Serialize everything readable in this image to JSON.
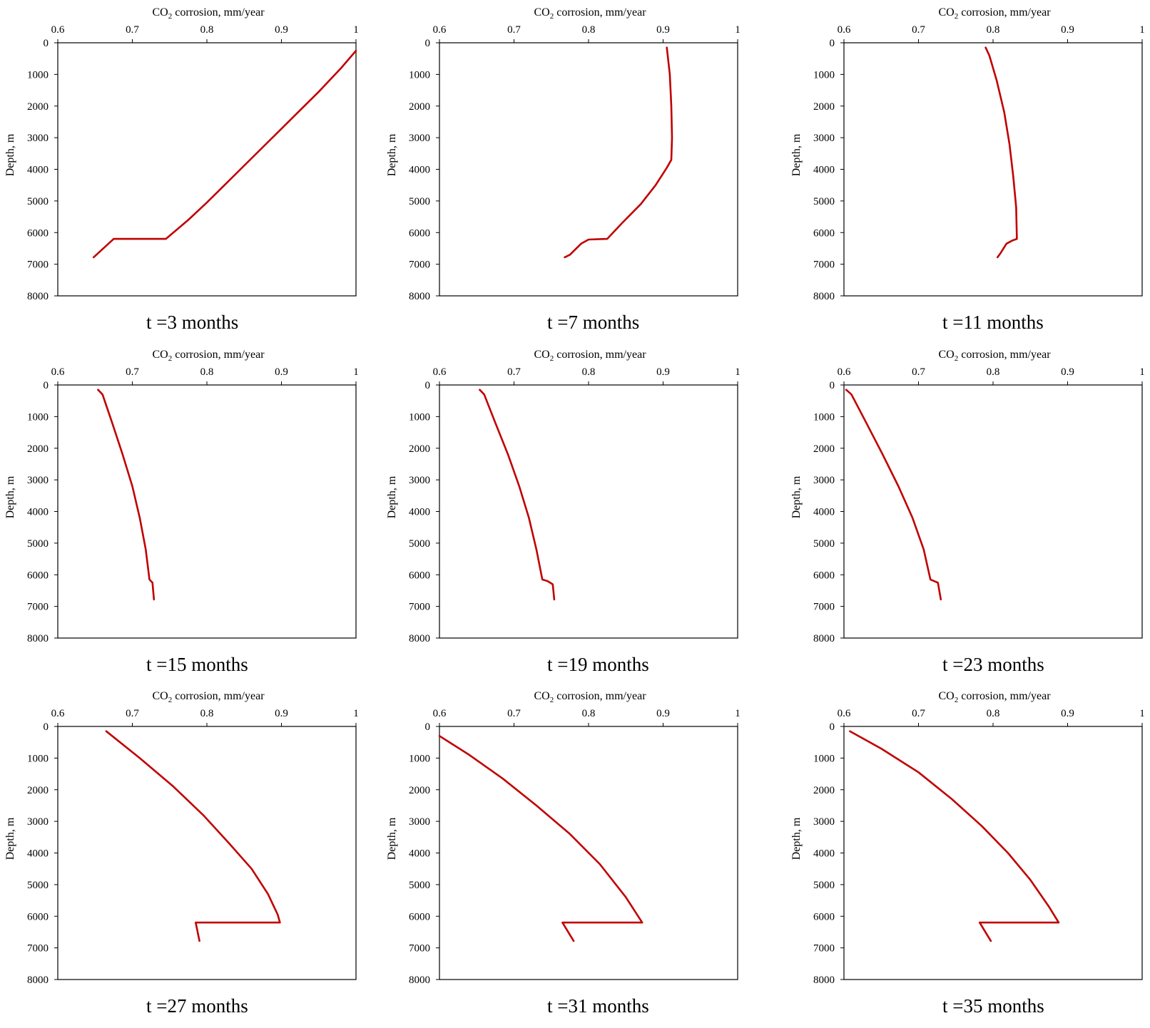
{
  "figure": {
    "axis_title_prefix": "CO",
    "axis_title_subscript": "2",
    "axis_title_suffix": " corrosion,  mm/year",
    "y_axis_title": "Depth, m",
    "line_color": "#c00000",
    "x_tick_labels": [
      "0.6",
      "0.7",
      "0.8",
      "0.9",
      "1"
    ],
    "y_tick_labels": [
      "0",
      "1000",
      "2000",
      "3000",
      "4000",
      "5000",
      "6000",
      "7000",
      "8000"
    ]
  },
  "chart_data": [
    {
      "type": "line",
      "caption": "t =3 months",
      "xlabel": "CO2 corrosion,  mm/year",
      "ylabel": "Depth, m",
      "xlim": [
        0.6,
        1
      ],
      "ylim": [
        0,
        8000
      ],
      "x_axis_position": "top",
      "y_axis_inverted": true,
      "series": [
        {
          "x": [
            1.0,
            0.98,
            0.95,
            0.92,
            0.89,
            0.86,
            0.83,
            0.8,
            0.775,
            0.745,
            0.71,
            0.675,
            0.648
          ],
          "y": [
            250,
            800,
            1550,
            2250,
            2950,
            3650,
            4350,
            5050,
            5600,
            6200,
            6200,
            6200,
            6780
          ]
        }
      ]
    },
    {
      "type": "line",
      "caption": "t =7 months",
      "xlabel": "CO2 corrosion,  mm/year",
      "ylabel": "Depth, m",
      "xlim": [
        0.6,
        1
      ],
      "ylim": [
        0,
        8000
      ],
      "x_axis_position": "top",
      "y_axis_inverted": true,
      "series": [
        {
          "x": [
            0.905,
            0.909,
            0.911,
            0.912,
            0.911,
            0.905,
            0.89,
            0.87,
            0.845,
            0.825,
            0.8,
            0.79,
            0.775,
            0.768
          ],
          "y": [
            150,
            1000,
            2000,
            3000,
            3700,
            3950,
            4500,
            5100,
            5700,
            6200,
            6220,
            6350,
            6700,
            6780
          ]
        }
      ]
    },
    {
      "type": "line",
      "caption": "t =11 months",
      "xlabel": "CO2 corrosion,  mm/year",
      "ylabel": "Depth, m",
      "xlim": [
        0.6,
        1
      ],
      "ylim": [
        0,
        8000
      ],
      "x_axis_position": "top",
      "y_axis_inverted": true,
      "series": [
        {
          "x": [
            0.79,
            0.795,
            0.805,
            0.815,
            0.822,
            0.827,
            0.831,
            0.832,
            0.826,
            0.818,
            0.81,
            0.806
          ],
          "y": [
            150,
            400,
            1200,
            2200,
            3200,
            4200,
            5200,
            6200,
            6250,
            6350,
            6650,
            6780
          ]
        }
      ]
    },
    {
      "type": "line",
      "caption": "t =15 months",
      "xlabel": "CO2 corrosion,  mm/year",
      "ylabel": "Depth, m",
      "xlim": [
        0.6,
        1
      ],
      "ylim": [
        0,
        8000
      ],
      "x_axis_position": "top",
      "y_axis_inverted": true,
      "series": [
        {
          "x": [
            0.654,
            0.66,
            0.673,
            0.687,
            0.7,
            0.71,
            0.718,
            0.723,
            0.727,
            0.729
          ],
          "y": [
            150,
            300,
            1200,
            2200,
            3200,
            4200,
            5200,
            6150,
            6250,
            6780
          ]
        }
      ]
    },
    {
      "type": "line",
      "caption": "t =19 months",
      "xlabel": "CO2 corrosion,  mm/year",
      "ylabel": "Depth, m",
      "xlim": [
        0.6,
        1
      ],
      "ylim": [
        0,
        8000
      ],
      "x_axis_position": "top",
      "y_axis_inverted": true,
      "series": [
        {
          "x": [
            0.654,
            0.66,
            0.675,
            0.692,
            0.707,
            0.72,
            0.73,
            0.738,
            0.745,
            0.752,
            0.754
          ],
          "y": [
            150,
            300,
            1200,
            2200,
            3200,
            4200,
            5200,
            6150,
            6200,
            6300,
            6780
          ]
        }
      ]
    },
    {
      "type": "line",
      "caption": "t =23 months",
      "xlabel": "CO2 corrosion,  mm/year",
      "ylabel": "Depth, m",
      "xlim": [
        0.6,
        1
      ],
      "ylim": [
        0,
        8000
      ],
      "x_axis_position": "top",
      "y_axis_inverted": true,
      "series": [
        {
          "x": [
            0.603,
            0.61,
            0.63,
            0.652,
            0.673,
            0.692,
            0.707,
            0.716,
            0.726,
            0.73
          ],
          "y": [
            150,
            300,
            1200,
            2200,
            3200,
            4200,
            5200,
            6150,
            6250,
            6780
          ]
        }
      ]
    },
    {
      "type": "line",
      "caption": "t =27 months",
      "xlabel": "CO2 corrosion,  mm/year",
      "ylabel": "Depth, m",
      "xlim": [
        0.6,
        1
      ],
      "ylim": [
        0,
        8000
      ],
      "x_axis_position": "top",
      "y_axis_inverted": true,
      "series": [
        {
          "x": [
            0.665,
            0.71,
            0.755,
            0.795,
            0.83,
            0.86,
            0.882,
            0.895,
            0.898,
            0.85,
            0.785,
            0.79
          ],
          "y": [
            150,
            1000,
            1900,
            2800,
            3700,
            4500,
            5300,
            5950,
            6200,
            6200,
            6200,
            6780
          ]
        }
      ]
    },
    {
      "type": "line",
      "caption": "t =31 months",
      "xlabel": "CO2 corrosion,  mm/year",
      "ylabel": "Depth, m",
      "xlim": [
        0.6,
        1
      ],
      "ylim": [
        0,
        8000
      ],
      "x_axis_position": "top",
      "y_axis_inverted": true,
      "series": [
        {
          "x": [
            0.6,
            0.64,
            0.685,
            0.73,
            0.775,
            0.815,
            0.85,
            0.872,
            0.82,
            0.765,
            0.78
          ],
          "y": [
            300,
            900,
            1650,
            2500,
            3400,
            4350,
            5400,
            6200,
            6200,
            6200,
            6780
          ]
        }
      ]
    },
    {
      "type": "line",
      "caption": "t =35 months",
      "xlabel": "CO2 corrosion,  mm/year",
      "ylabel": "Depth, m",
      "xlim": [
        0.6,
        1
      ],
      "ylim": [
        0,
        8000
      ],
      "x_axis_position": "top",
      "y_axis_inverted": true,
      "series": [
        {
          "x": [
            0.608,
            0.65,
            0.7,
            0.745,
            0.785,
            0.82,
            0.85,
            0.875,
            0.888,
            0.83,
            0.782,
            0.797
          ],
          "y": [
            150,
            700,
            1450,
            2300,
            3150,
            4000,
            4850,
            5700,
            6200,
            6200,
            6200,
            6780
          ]
        }
      ]
    }
  ]
}
